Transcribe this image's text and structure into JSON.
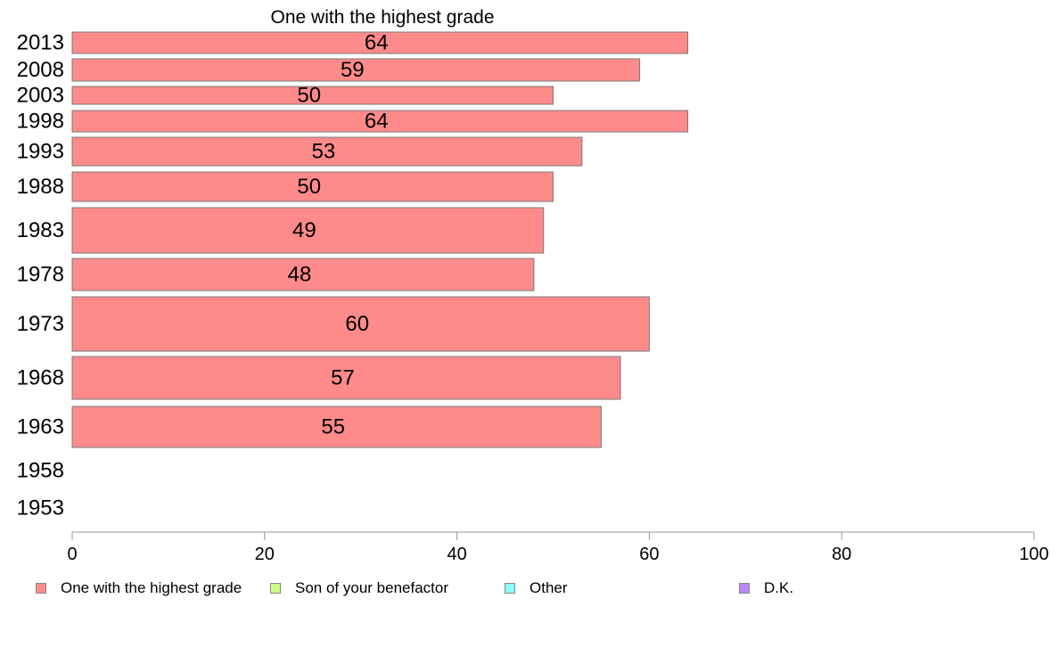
{
  "chart_data": {
    "type": "bar",
    "orientation": "horizontal",
    "title": "One with the highest grade",
    "categories": [
      "2013",
      "2008",
      "2003",
      "1998",
      "1993",
      "1988",
      "1983",
      "1978",
      "1973",
      "1968",
      "1963",
      "1958",
      "1953"
    ],
    "series": [
      {
        "name": "One with the highest grade",
        "color": "#ff8a8a",
        "values": [
          64,
          59,
          50,
          64,
          53,
          50,
          49,
          48,
          60,
          57,
          55,
          null,
          null
        ]
      }
    ],
    "legend": [
      {
        "label": "One with the highest grade",
        "color": "#ff8a8a"
      },
      {
        "label": "Son of your benefactor",
        "color": "#ccff88"
      },
      {
        "label": "Other",
        "color": "#88ffff"
      },
      {
        "label": "D.K.",
        "color": "#bb88ff"
      }
    ],
    "xlim": [
      0,
      100
    ],
    "xticks": [
      0,
      20,
      40,
      60,
      80,
      100
    ],
    "xlabel": "",
    "ylabel": "",
    "grid": false,
    "legend_position": "bottom"
  }
}
